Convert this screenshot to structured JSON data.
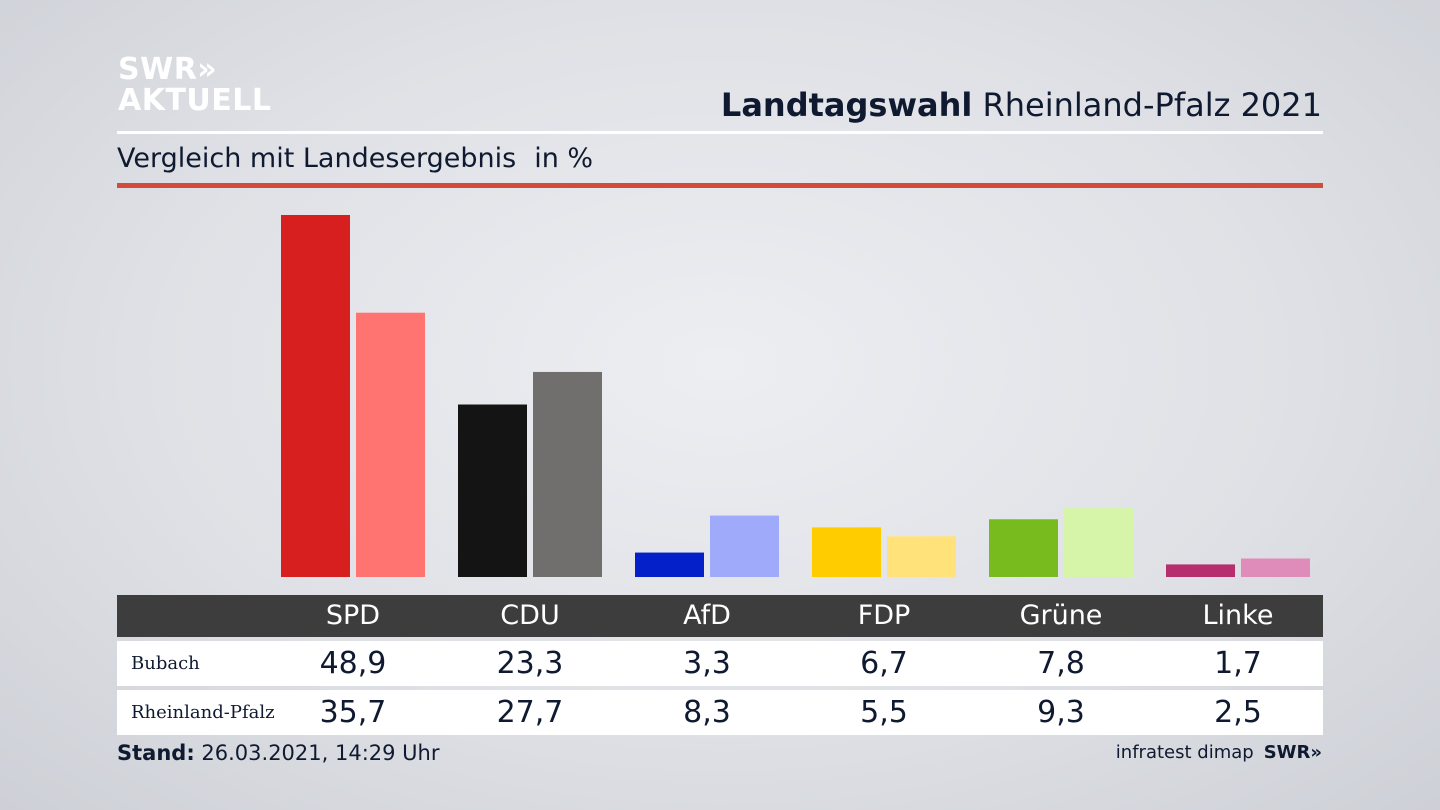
{
  "logo": {
    "line1": "SWR»",
    "line2": "AKTUELL"
  },
  "header": {
    "title_bold": "Landtagswahl",
    "title_rest": " Rheinland-Pfalz 2021"
  },
  "subtitle": {
    "text": "Vergleich mit Landesergebnis",
    "unit": "in %"
  },
  "footer": {
    "stand_label": "Stand:",
    "stand_value": " 26.03.2021, 14:29 Uhr",
    "source": "infratest dimap",
    "brand": "SWR»"
  },
  "chart_data": {
    "type": "bar",
    "categories": [
      "SPD",
      "CDU",
      "AfD",
      "FDP",
      "Grüne",
      "Linke"
    ],
    "series": [
      {
        "name": "Bubach",
        "values": [
          48.9,
          23.3,
          3.3,
          6.7,
          7.8,
          1.7
        ],
        "colors": [
          "#d71f1f",
          "#141414",
          "#0421c9",
          "#ffcc00",
          "#78bb1e",
          "#b62e6e"
        ]
      },
      {
        "name": "Rheinland-Pfalz",
        "values": [
          35.7,
          27.7,
          8.3,
          5.5,
          9.3,
          2.5
        ],
        "colors": [
          "#ff7470",
          "#706f6d",
          "#9faafb",
          "#ffe37a",
          "#d6f5a8",
          "#e08cba"
        ]
      }
    ],
    "ylim": [
      0,
      48.9
    ],
    "grid": false,
    "legend": "table-below"
  }
}
